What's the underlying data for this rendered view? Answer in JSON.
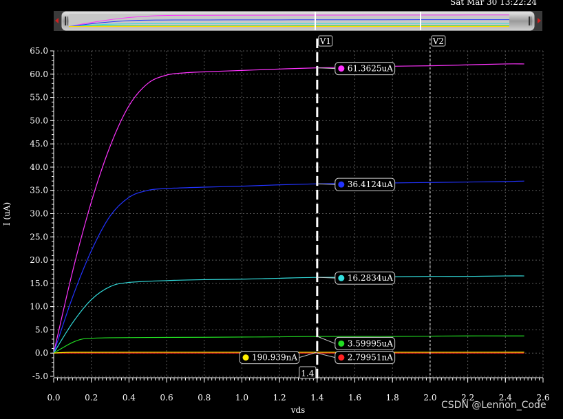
{
  "header": {
    "timestamp": "Sat Mar 30 13:22:24"
  },
  "colors": {
    "background": "#000000",
    "grid": "#5a5a5a",
    "axis": "#ffffff"
  },
  "chart_data": {
    "type": "line",
    "title": "",
    "xlabel": "vds",
    "ylabel": "I (uA)",
    "xlim": [
      0.0,
      2.6
    ],
    "ylim": [
      -5.0,
      65.0
    ],
    "xticks": [
      "0.0",
      "0.2",
      "0.4",
      "0.6",
      "0.8",
      "1.0",
      "1.2",
      "1.4",
      "1.6",
      "1.8",
      "2.0",
      "2.2",
      "2.4",
      "2.6"
    ],
    "yticks": [
      "-5.0",
      "0.0",
      "5.0",
      "10.0",
      "15.0",
      "20.0",
      "25.0",
      "30.0",
      "35.0",
      "40.0",
      "45.0",
      "50.0",
      "55.0",
      "60.0",
      "65.0"
    ],
    "grid": true,
    "series": [
      {
        "color": "#ff33ff",
        "isat": 61.3625,
        "vsat": 0.7,
        "slope": 0.8,
        "x": [
          0.0,
          0.1,
          0.2,
          0.3,
          0.4,
          0.5,
          0.6,
          0.7,
          0.8,
          1.0,
          1.2,
          1.4,
          1.6,
          1.8,
          2.0,
          2.2,
          2.4,
          2.5
        ],
        "y": [
          0,
          17.5,
          32.5,
          44.5,
          53.2,
          58.0,
          59.8,
          60.3,
          60.5,
          60.8,
          61.1,
          61.36,
          61.5,
          61.7,
          61.8,
          62.0,
          62.2,
          62.2
        ]
      },
      {
        "color": "#2233ff",
        "isat": 36.4124,
        "vsat": 0.5,
        "slope": 0.6,
        "x": [
          0.0,
          0.1,
          0.2,
          0.3,
          0.4,
          0.5,
          0.6,
          0.8,
          1.0,
          1.2,
          1.4,
          1.6,
          1.8,
          2.0,
          2.2,
          2.4,
          2.5
        ],
        "y": [
          0,
          12.0,
          22.0,
          29.5,
          33.5,
          35.0,
          35.4,
          35.7,
          35.9,
          36.2,
          36.41,
          36.5,
          36.6,
          36.7,
          36.8,
          36.9,
          37.0
        ]
      },
      {
        "color": "#33dddd",
        "isat": 16.2834,
        "vsat": 0.35,
        "slope": 0.3,
        "x": [
          0.0,
          0.1,
          0.2,
          0.3,
          0.4,
          0.6,
          0.8,
          1.0,
          1.2,
          1.4,
          1.6,
          1.8,
          2.0,
          2.2,
          2.4,
          2.5
        ],
        "y": [
          0,
          6.5,
          11.5,
          14.3,
          15.2,
          15.6,
          15.8,
          15.9,
          16.1,
          16.28,
          16.3,
          16.4,
          16.5,
          16.5,
          16.6,
          16.6
        ]
      },
      {
        "color": "#22dd22",
        "isat": 3.59995,
        "vsat": 0.2,
        "slope": 0.1,
        "x": [
          0.0,
          0.05,
          0.1,
          0.15,
          0.2,
          0.3,
          0.5,
          0.8,
          1.0,
          1.2,
          1.4,
          1.6,
          1.8,
          2.0,
          2.2,
          2.4,
          2.5
        ],
        "y": [
          0,
          1.2,
          2.3,
          3.0,
          3.2,
          3.3,
          3.35,
          3.4,
          3.45,
          3.5,
          3.6,
          3.6,
          3.6,
          3.65,
          3.7,
          3.7,
          3.7
        ]
      },
      {
        "color": "#ff2222",
        "isat": 0.00279951,
        "vsat": 0.1,
        "slope": 0.0,
        "x": [
          0.0,
          0.1,
          0.5,
          1.0,
          1.4,
          2.0,
          2.5
        ],
        "y": [
          0,
          0.003,
          0.003,
          0.003,
          0.003,
          0.003,
          0.003
        ]
      },
      {
        "color": "#ffee00",
        "isat": 0.190939,
        "vsat": 0.1,
        "slope": 0.0,
        "x": [
          0.0,
          0.1,
          0.5,
          1.0,
          1.4,
          2.0,
          2.5
        ],
        "y": [
          0,
          0.18,
          0.19,
          0.19,
          0.19,
          0.19,
          0.2
        ]
      }
    ],
    "cursors": [
      {
        "label": "V1",
        "x": 1.4,
        "value_label": "1.4",
        "style": "thick"
      },
      {
        "label": "V2",
        "x": 2.0,
        "style": "thin"
      }
    ],
    "markers": [
      {
        "text": "61.3625uA",
        "series": 0,
        "side": "right",
        "y": 61.3625
      },
      {
        "text": "36.4124uA",
        "series": 1,
        "side": "right",
        "y": 36.4124
      },
      {
        "text": "16.2834uA",
        "series": 2,
        "side": "right",
        "y": 16.2834
      },
      {
        "text": "3.59995uA",
        "series": 3,
        "side": "right",
        "y": 3.59995,
        "box_y": 2.2
      },
      {
        "text": "2.79951nA",
        "series": 4,
        "side": "right",
        "y": 0.0028,
        "box_y": -0.8
      },
      {
        "text": "190.939nA",
        "series": 5,
        "side": "left",
        "y": 0.19,
        "box_y": -0.8
      }
    ]
  },
  "footer": {
    "watermark": "CSDN @Lennon_Code"
  }
}
